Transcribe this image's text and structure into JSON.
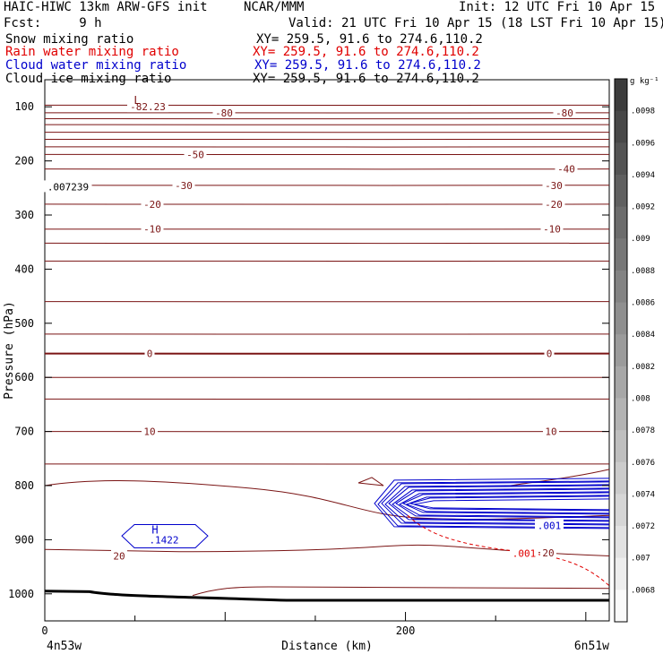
{
  "header": {
    "model": "HAIC-HIWC 13km ARW-GFS init",
    "org": "NCAR/MMM",
    "init": "Init: 12 UTC Fri 10 Apr 15",
    "fcst": "Fcst:     9 h",
    "valid": "Valid: 21 UTC Fri 10 Apr 15 (18 LST Fri 10 Apr 15)",
    "fields": [
      {
        "name": "Snow mixing ratio",
        "xy": "XY= 259.5, 91.6 to 274.6,110.2",
        "color": "#000000"
      },
      {
        "name": "Rain water mixing ratio",
        "xy": "XY= 259.5, 91.6 to 274.6,110.2",
        "color": "#e00000"
      },
      {
        "name": "Cloud water mixing ratio",
        "xy": "XY= 259.5, 91.6 to 274.6,110.2",
        "color": "#0000cc"
      },
      {
        "name": "Cloud ice mixing ratio",
        "xy": "XY= 259.5, 91.6 to 274.6,110.2",
        "color": "#000000"
      }
    ]
  },
  "chart_data": {
    "type": "contour-cross-section",
    "ylabel": "Pressure (hPa)",
    "xlabel": "Distance (km)",
    "ylim": [
      1050,
      50
    ],
    "xlim": [
      0,
      313
    ],
    "y_ticks": [
      100,
      200,
      300,
      400,
      500,
      600,
      700,
      800,
      900,
      1000
    ],
    "x_ticks": [
      0,
      200
    ],
    "x_end_labels": {
      "left": "4n53w",
      "right": "6n51w"
    },
    "temperature_contours": [
      {
        "label": "-82.23",
        "p": 100
      },
      {
        "label": "-80",
        "p": 111
      },
      {
        "label": "-50",
        "p": 188
      },
      {
        "label": "-40",
        "p": 215
      },
      {
        "label": "-30",
        "p": 245
      },
      {
        "label": "-20",
        "p": 280
      },
      {
        "label": "-10",
        "p": 326
      },
      {
        "label": "0",
        "p": 556
      },
      {
        "label": "10",
        "p": 700
      },
      {
        "label": "20",
        "p": 920
      }
    ],
    "annotations": {
      "low_marker": "L",
      "high_marker": "H",
      "high_value": ".1422",
      "left_value": ".007239",
      "cloud_water_label": ".001",
      "rain_label": ".001",
      "rain_label_20": "20"
    },
    "colorbar": {
      "unit": "g kg⁻¹",
      "ticks": [
        ".0098",
        ".0096",
        ".0094",
        ".0092",
        ".009",
        ".0088",
        ".0086",
        ".0084",
        ".0082",
        ".008",
        ".0078",
        ".0076",
        ".0074",
        ".0072",
        ".007",
        ".0068"
      ]
    }
  }
}
